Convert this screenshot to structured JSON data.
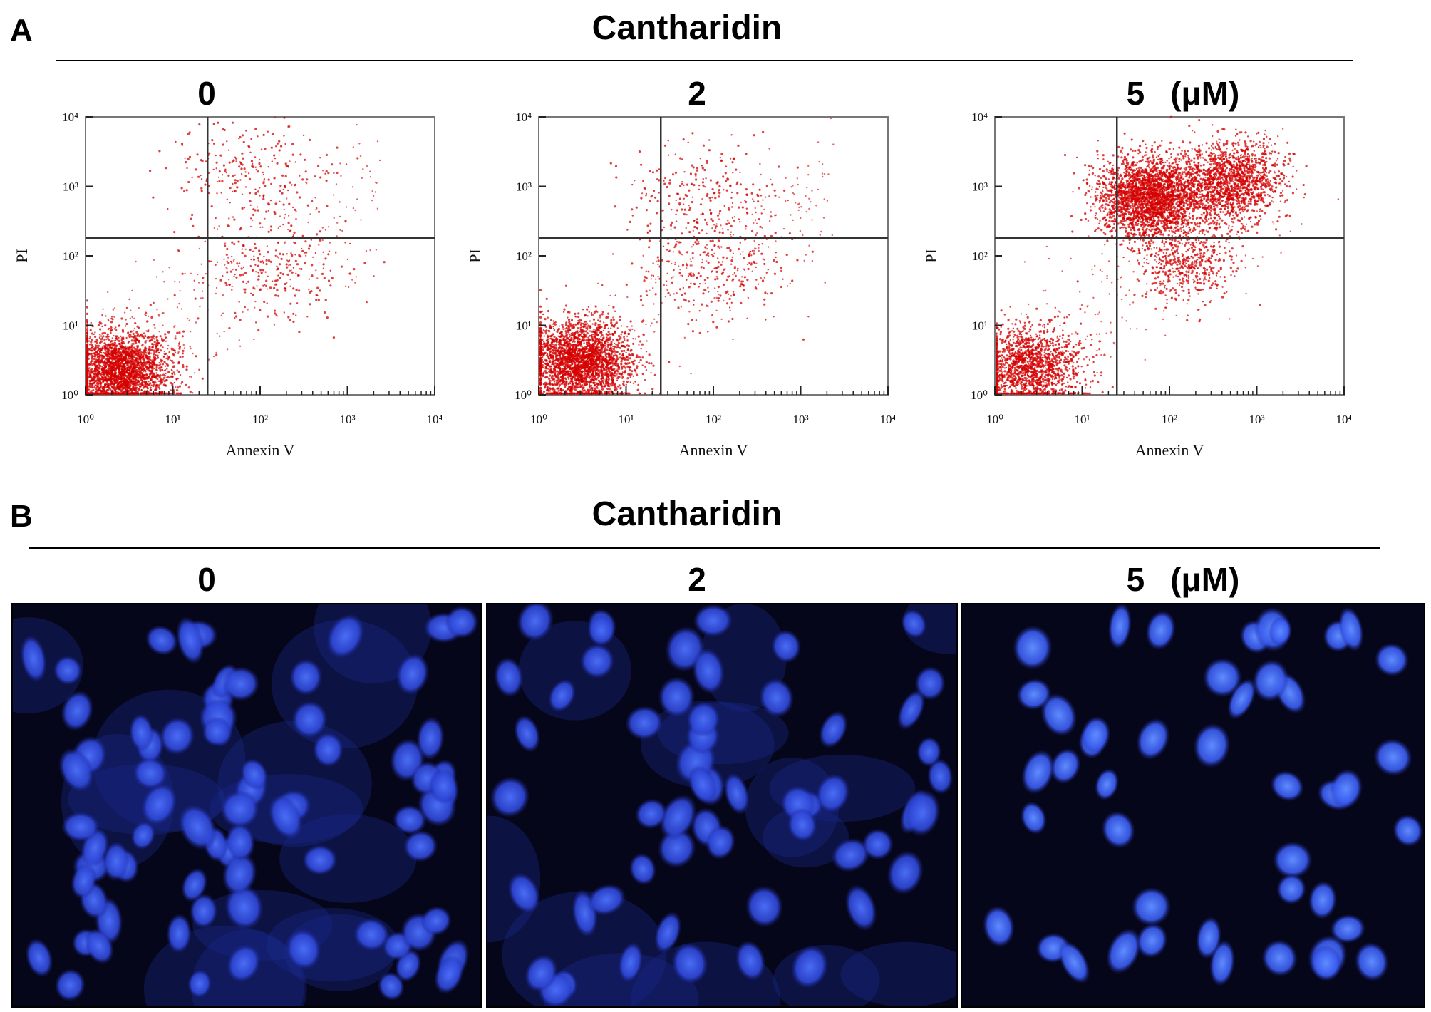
{
  "figure": {
    "panel_a": {
      "letter": "A",
      "heading": "Cantharidin",
      "conditions": [
        "0",
        "2",
        "5"
      ],
      "unit": "(μM)",
      "plots": [
        {
          "x_ticks": [
            "10⁰",
            "10¹",
            "10²",
            "10³",
            "10⁴"
          ],
          "y_ticks": [
            "10⁴",
            "10³",
            "10²",
            "10¹",
            "10⁰"
          ],
          "xlabel": "Annexin V",
          "ylabel": "PI"
        },
        {
          "x_ticks": [
            "10⁰",
            "10¹",
            "10²",
            "10³",
            "10⁴"
          ],
          "y_ticks": [
            "10⁴",
            "10³",
            "10²",
            "10¹",
            "10⁰"
          ],
          "xlabel": "Annexin V",
          "ylabel": "PI"
        },
        {
          "x_ticks": [
            "10⁰",
            "10¹",
            "10²",
            "10³",
            "10⁴"
          ],
          "y_ticks": [
            "10⁴",
            "10³",
            "10²",
            "10¹",
            "10⁰"
          ],
          "xlabel": "Annexin V",
          "ylabel": "PI"
        }
      ]
    },
    "panel_b": {
      "letter": "B",
      "heading": "Cantharidin",
      "conditions": [
        "0",
        "2",
        "5"
      ],
      "unit": "(μM)"
    }
  },
  "colors": {
    "dots": "#d40000",
    "nuclei": "#3f63ff",
    "background": "#06061a"
  },
  "chart_data": [
    {
      "type": "scatter",
      "condition": "0",
      "xlabel": "Annexin V",
      "ylabel": "PI",
      "x_scale": "log",
      "y_scale": "log",
      "xlim": [
        1,
        10000
      ],
      "ylim": [
        1,
        10000
      ],
      "quadrant_gate": {
        "x": 25,
        "y": 180
      },
      "clusters": [
        {
          "x": 2.5,
          "y": 2.2,
          "density": "very high"
        },
        {
          "x": 150,
          "y": 60,
          "density": "low"
        },
        {
          "x": 80,
          "y": 1500,
          "density": "low"
        }
      ]
    },
    {
      "type": "scatter",
      "condition": "2",
      "xlabel": "Annexin V",
      "ylabel": "PI",
      "x_scale": "log",
      "y_scale": "log",
      "xlim": [
        1,
        10000
      ],
      "ylim": [
        1,
        10000
      ],
      "quadrant_gate": {
        "x": 25,
        "y": 180
      },
      "clusters": [
        {
          "x": 3,
          "y": 3,
          "density": "very high"
        },
        {
          "x": 100,
          "y": 60,
          "density": "low"
        },
        {
          "x": 80,
          "y": 700,
          "density": "low"
        }
      ]
    },
    {
      "type": "scatter",
      "condition": "5",
      "xlabel": "Annexin V",
      "ylabel": "PI",
      "x_scale": "log",
      "y_scale": "log",
      "xlim": [
        1,
        10000
      ],
      "ylim": [
        1,
        10000
      ],
      "quadrant_gate": {
        "x": 25,
        "y": 180
      },
      "clusters": [
        {
          "x": 2.5,
          "y": 2.5,
          "density": "high"
        },
        {
          "x": 60,
          "y": 700,
          "density": "very high"
        },
        {
          "x": 500,
          "y": 1200,
          "density": "high"
        },
        {
          "x": 150,
          "y": 80,
          "density": "medium"
        }
      ]
    }
  ]
}
